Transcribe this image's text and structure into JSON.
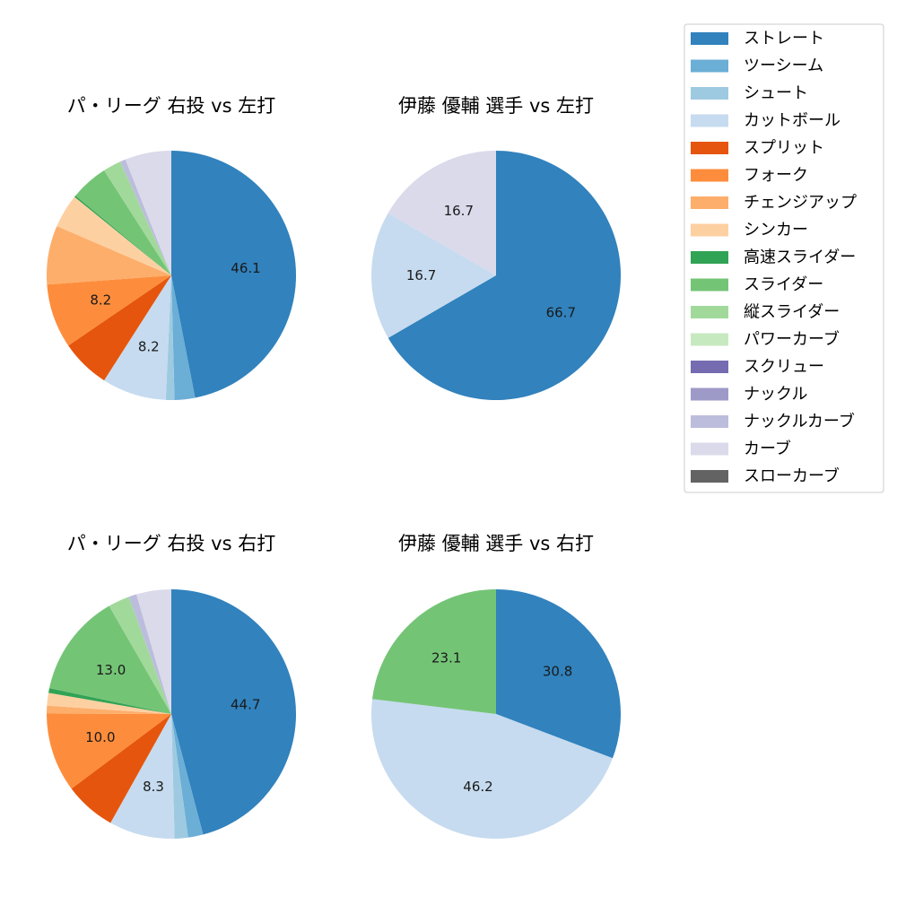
{
  "legend": {
    "items": [
      {
        "label": "ストレート",
        "color": "#3182bd"
      },
      {
        "label": "ツーシーム",
        "color": "#6baed6"
      },
      {
        "label": "シュート",
        "color": "#9ecae1"
      },
      {
        "label": "カットボール",
        "color": "#c6dbef"
      },
      {
        "label": "スプリット",
        "color": "#e6550d"
      },
      {
        "label": "フォーク",
        "color": "#fd8d3c"
      },
      {
        "label": "チェンジアップ",
        "color": "#fdae6b"
      },
      {
        "label": "シンカー",
        "color": "#fdd0a2"
      },
      {
        "label": "高速スライダー",
        "color": "#31a354"
      },
      {
        "label": "スライダー",
        "color": "#74c476"
      },
      {
        "label": "縦スライダー",
        "color": "#a1d99b"
      },
      {
        "label": "パワーカーブ",
        "color": "#c7e9c0"
      },
      {
        "label": "スクリュー",
        "color": "#756bb1"
      },
      {
        "label": "ナックル",
        "color": "#9e9ac8"
      },
      {
        "label": "ナックルカーブ",
        "color": "#bcbddc"
      },
      {
        "label": "カーブ",
        "color": "#dadaeb"
      },
      {
        "label": "スローカーブ",
        "color": "#636363"
      }
    ]
  },
  "chart_data": [
    {
      "type": "pie",
      "title": "パ・リーグ 右投 vs 左打",
      "slices": [
        {
          "pitch": "ストレート",
          "value": 46.1,
          "label": "46.1"
        },
        {
          "pitch": "ツーシーム",
          "value": 2.6,
          "label": ""
        },
        {
          "pitch": "シュート",
          "value": 1.1,
          "label": ""
        },
        {
          "pitch": "カットボール",
          "value": 8.2,
          "label": "8.2"
        },
        {
          "pitch": "スプリット",
          "value": 6.3,
          "label": ""
        },
        {
          "pitch": "フォーク",
          "value": 8.2,
          "label": "8.2"
        },
        {
          "pitch": "チェンジアップ",
          "value": 7.5,
          "label": ""
        },
        {
          "pitch": "シンカー",
          "value": 4.3,
          "label": ""
        },
        {
          "pitch": "高速スライダー",
          "value": 0.2,
          "label": ""
        },
        {
          "pitch": "スライダー",
          "value": 4.8,
          "label": ""
        },
        {
          "pitch": "縦スライダー",
          "value": 2.3,
          "label": ""
        },
        {
          "pitch": "ナックルカーブ",
          "value": 0.7,
          "label": ""
        },
        {
          "pitch": "カーブ",
          "value": 5.9,
          "label": ""
        }
      ]
    },
    {
      "type": "pie",
      "title": "伊藤 優輔 選手 vs 左打",
      "slices": [
        {
          "pitch": "ストレート",
          "value": 66.7,
          "label": "66.7"
        },
        {
          "pitch": "カットボール",
          "value": 16.7,
          "label": "16.7"
        },
        {
          "pitch": "カーブ",
          "value": 16.7,
          "label": "16.7"
        }
      ]
    },
    {
      "type": "pie",
      "title": "パ・リーグ 右投 vs 右打",
      "slices": [
        {
          "pitch": "ストレート",
          "value": 44.7,
          "label": "44.7"
        },
        {
          "pitch": "ツーシーム",
          "value": 1.9,
          "label": ""
        },
        {
          "pitch": "シュート",
          "value": 1.7,
          "label": ""
        },
        {
          "pitch": "カットボール",
          "value": 8.3,
          "label": "8.3"
        },
        {
          "pitch": "スプリット",
          "value": 6.5,
          "label": ""
        },
        {
          "pitch": "フォーク",
          "value": 10.0,
          "label": "10.0"
        },
        {
          "pitch": "チェンジアップ",
          "value": 1.0,
          "label": ""
        },
        {
          "pitch": "シンカー",
          "value": 1.6,
          "label": ""
        },
        {
          "pitch": "高速スライダー",
          "value": 0.6,
          "label": ""
        },
        {
          "pitch": "スライダー",
          "value": 13.0,
          "label": "13.0"
        },
        {
          "pitch": "縦スライダー",
          "value": 2.7,
          "label": ""
        },
        {
          "pitch": "ナックルカーブ",
          "value": 1.0,
          "label": ""
        },
        {
          "pitch": "カーブ",
          "value": 4.4,
          "label": ""
        }
      ]
    },
    {
      "type": "pie",
      "title": "伊藤 優輔 選手 vs 右打",
      "slices": [
        {
          "pitch": "ストレート",
          "value": 30.8,
          "label": "30.8"
        },
        {
          "pitch": "カットボール",
          "value": 46.2,
          "label": "46.2"
        },
        {
          "pitch": "スライダー",
          "value": 23.1,
          "label": "23.1"
        }
      ]
    }
  ]
}
